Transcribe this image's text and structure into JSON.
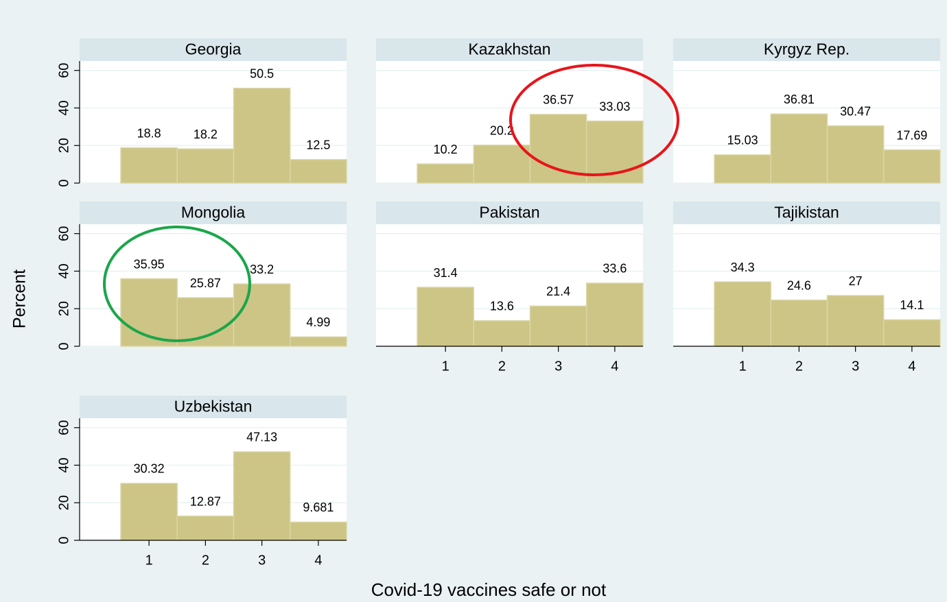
{
  "chart_data": {
    "type": "bar",
    "ylabel": "Percent",
    "xlabel": "Covid-19 vaccines safe or not",
    "x": [
      1,
      2,
      3,
      4
    ],
    "xlim": [
      -0.23,
      4.5
    ],
    "xticks": [
      1,
      2,
      3,
      4
    ],
    "ylim": [
      0,
      65
    ],
    "yticks": [
      0,
      20,
      40,
      60
    ],
    "grid": true,
    "color": "#ccc586",
    "panels": [
      {
        "title": "Georgia",
        "values": [
          18.8,
          18.2,
          50.5,
          12.5
        ]
      },
      {
        "title": "Kazakhstan",
        "values": [
          10.2,
          20.2,
          36.57,
          33.03
        ]
      },
      {
        "title": "Kyrgyz Rep.",
        "values": [
          15.03,
          36.81,
          30.47,
          17.69
        ]
      },
      {
        "title": "Mongolia",
        "values": [
          35.95,
          25.87,
          33.2,
          4.99
        ]
      },
      {
        "title": "Pakistan",
        "values": [
          31.4,
          13.6,
          21.4,
          33.6
        ]
      },
      {
        "title": "Tajikistan",
        "values": [
          34.3,
          24.6,
          27,
          14.1
        ]
      },
      {
        "title": "Uzbekistan",
        "values": [
          30.32,
          12.87,
          47.13,
          9.681
        ]
      }
    ]
  }
}
